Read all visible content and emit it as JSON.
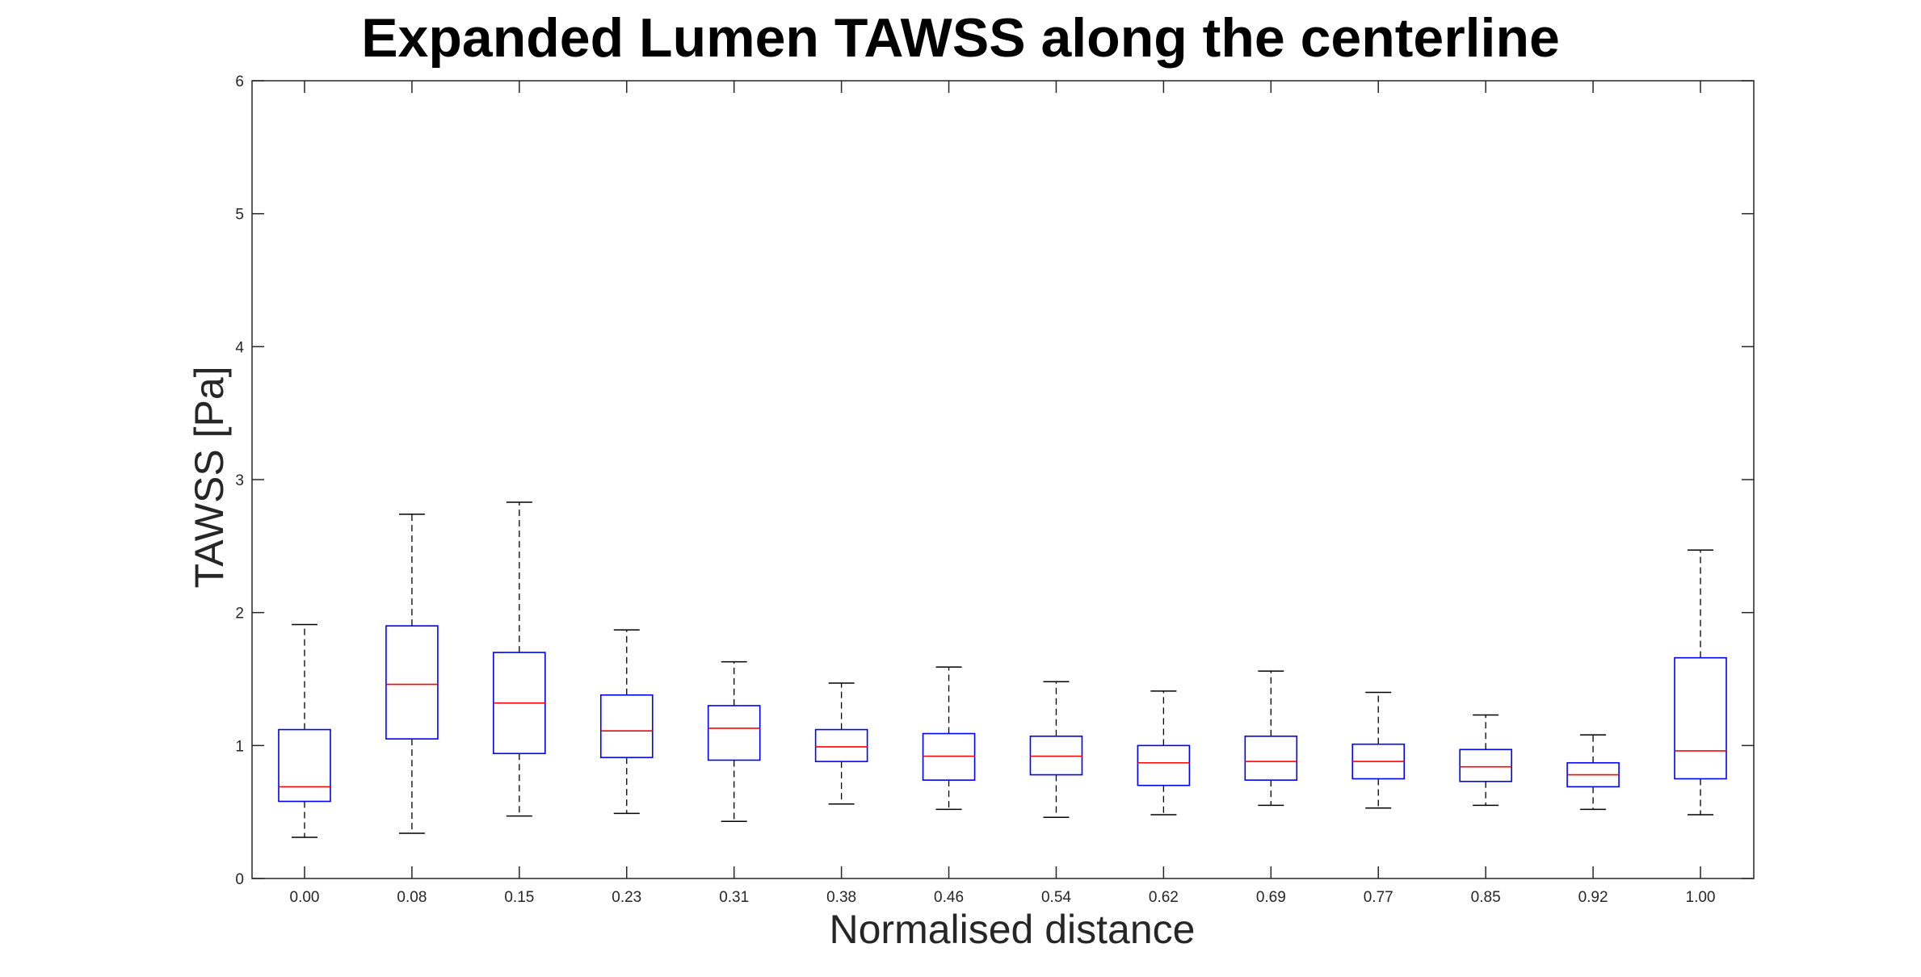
{
  "chart_data": {
    "type": "boxplot",
    "title": "Expanded Lumen TAWSS along the centerline",
    "xlabel": "Normalised distance",
    "ylabel": "TAWSS [Pa]",
    "ylim": [
      0,
      6
    ],
    "yticks": [
      0,
      1,
      2,
      3,
      4,
      5,
      6
    ],
    "categories": [
      "0.00",
      "0.08",
      "0.15",
      "0.23",
      "0.31",
      "0.38",
      "0.46",
      "0.54",
      "0.62",
      "0.69",
      "0.77",
      "0.85",
      "0.92",
      "1.00"
    ],
    "boxes": [
      {
        "whisker_low": 0.31,
        "q1": 0.58,
        "median": 0.69,
        "q3": 1.12,
        "whisker_high": 1.91
      },
      {
        "whisker_low": 0.34,
        "q1": 1.05,
        "median": 1.46,
        "q3": 1.9,
        "whisker_high": 2.74
      },
      {
        "whisker_low": 0.47,
        "q1": 0.94,
        "median": 1.32,
        "q3": 1.7,
        "whisker_high": 2.83
      },
      {
        "whisker_low": 0.49,
        "q1": 0.91,
        "median": 1.11,
        "q3": 1.38,
        "whisker_high": 1.87
      },
      {
        "whisker_low": 0.43,
        "q1": 0.89,
        "median": 1.13,
        "q3": 1.3,
        "whisker_high": 1.63
      },
      {
        "whisker_low": 0.56,
        "q1": 0.88,
        "median": 0.99,
        "q3": 1.12,
        "whisker_high": 1.47
      },
      {
        "whisker_low": 0.52,
        "q1": 0.74,
        "median": 0.92,
        "q3": 1.09,
        "whisker_high": 1.59
      },
      {
        "whisker_low": 0.46,
        "q1": 0.78,
        "median": 0.92,
        "q3": 1.07,
        "whisker_high": 1.48
      },
      {
        "whisker_low": 0.48,
        "q1": 0.7,
        "median": 0.87,
        "q3": 1.0,
        "whisker_high": 1.41
      },
      {
        "whisker_low": 0.55,
        "q1": 0.74,
        "median": 0.88,
        "q3": 1.07,
        "whisker_high": 1.56
      },
      {
        "whisker_low": 0.53,
        "q1": 0.75,
        "median": 0.88,
        "q3": 1.01,
        "whisker_high": 1.4
      },
      {
        "whisker_low": 0.55,
        "q1": 0.73,
        "median": 0.84,
        "q3": 0.97,
        "whisker_high": 1.23
      },
      {
        "whisker_low": 0.52,
        "q1": 0.69,
        "median": 0.78,
        "q3": 0.87,
        "whisker_high": 1.08
      },
      {
        "whisker_low": 0.48,
        "q1": 0.75,
        "median": 0.96,
        "q3": 1.66,
        "whisker_high": 2.47
      }
    ],
    "colors": {
      "box": "#0000ff",
      "median": "#ff0000",
      "whisker": "#000000",
      "axis": "#262626"
    },
    "grid": false,
    "legend": "none"
  }
}
